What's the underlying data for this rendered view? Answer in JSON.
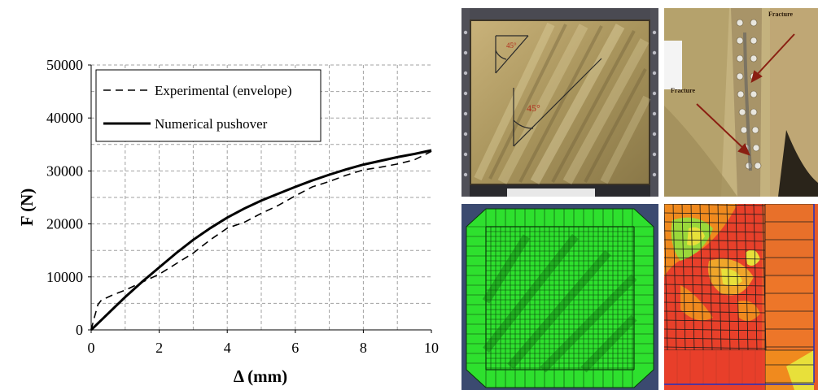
{
  "chart_data": {
    "type": "line",
    "xlabel": "Δ (mm)",
    "ylabel": "F (N)",
    "xlim": [
      0,
      10
    ],
    "ylim": [
      0,
      50000
    ],
    "xticks": [
      0,
      2,
      4,
      6,
      8,
      10
    ],
    "yticks": [
      0,
      10000,
      20000,
      30000,
      40000,
      50000
    ],
    "grid": true,
    "legend_position": "top-left",
    "series": [
      {
        "name": "Experimental (envelope)",
        "style": "dashed",
        "color": "#000000",
        "x": [
          0,
          0.08,
          0.2,
          0.3,
          0.6,
          1.0,
          1.5,
          2.0,
          2.5,
          3.0,
          3.5,
          4.0,
          4.5,
          5.0,
          5.5,
          6.0,
          6.5,
          7.0,
          7.5,
          8.0,
          8.5,
          9.0,
          9.5,
          10.0
        ],
        "y": [
          0,
          2000,
          4800,
          5600,
          6500,
          7500,
          9000,
          10500,
          12500,
          14500,
          17000,
          19200,
          20300,
          22000,
          23500,
          25300,
          27000,
          28000,
          29200,
          30200,
          30700,
          31300,
          32100,
          33700
        ]
      },
      {
        "name": "Numerical pushover",
        "style": "solid",
        "color": "#000000",
        "x": [
          0,
          0.5,
          1.0,
          1.5,
          2.0,
          2.5,
          3.0,
          3.5,
          4.0,
          4.5,
          5.0,
          5.5,
          6.0,
          6.5,
          7.0,
          7.5,
          8.0,
          8.5,
          9.0,
          9.5,
          10.0
        ],
        "y": [
          0,
          3100,
          6200,
          9100,
          11800,
          14500,
          17000,
          19200,
          21200,
          22900,
          24400,
          25700,
          27000,
          28200,
          29300,
          30300,
          31200,
          31900,
          32600,
          33200,
          33900
        ]
      }
    ]
  },
  "photos": {
    "top_left": {
      "angle_label_small": "45°",
      "angle_label_large": "45°"
    },
    "top_right": {
      "fracture_label_top": "Fracture",
      "fracture_label_left": "Fracture"
    }
  },
  "colors": {
    "fem_green": "#2ee02e",
    "fem_grid": "#0a3a0a",
    "fem_red": "#e8402a",
    "fem_orange": "#f08a1e",
    "fem_yellow": "#e8e03a",
    "arrow_red": "#8a1f12",
    "photo_gold": "#b5a068"
  }
}
